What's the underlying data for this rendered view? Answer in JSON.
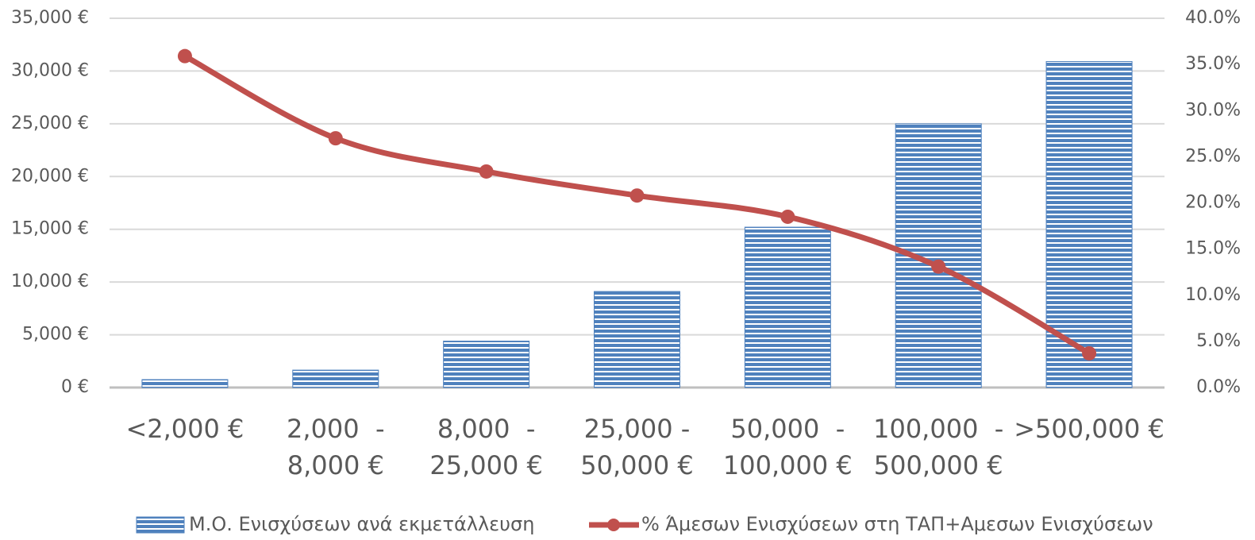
{
  "chart_data": {
    "type": "combo",
    "categories": [
      "<2,000 €",
      "2,000  -\n8,000 €",
      "8,000  -\n25,000 €",
      "25,000 -\n50,000 €",
      "50,000  -\n100,000 €",
      "100,000  -\n500,000 €",
      ">500,000 €"
    ],
    "series": [
      {
        "name": "Μ.Ο. Ενισχύσεων ανά εκμετάλλευση",
        "type": "bar",
        "color": "#4f81bd",
        "axis": "y",
        "values": [
          750,
          1650,
          4400,
          9100,
          15200,
          25000,
          30900
        ]
      },
      {
        "name": "% Άμεσων Ενισχύσεων στη ΤΑΠ+Αμεσων Ενισχύσεων",
        "type": "line",
        "color": "#c0504d",
        "axis": "y2",
        "values": [
          35.9,
          27.0,
          23.4,
          20.8,
          18.5,
          13.1,
          3.7
        ]
      }
    ],
    "ylim": [
      0,
      35000
    ],
    "yticks": [
      {
        "value": 0,
        "label": "0 €"
      },
      {
        "value": 5000,
        "label": "5,000 €"
      },
      {
        "value": 10000,
        "label": "10,000 €"
      },
      {
        "value": 15000,
        "label": "15,000 €"
      },
      {
        "value": 20000,
        "label": "20,000 €"
      },
      {
        "value": 25000,
        "label": "25,000 €"
      },
      {
        "value": 30000,
        "label": "30,000 €"
      },
      {
        "value": 35000,
        "label": "35,000 €"
      }
    ],
    "y2lim": [
      0,
      40
    ],
    "y2ticks": [
      {
        "value": 0,
        "label": "0.0%"
      },
      {
        "value": 5,
        "label": "5.0%"
      },
      {
        "value": 10,
        "label": "10.0%"
      },
      {
        "value": 15,
        "label": "15.0%"
      },
      {
        "value": 20,
        "label": "20.0%"
      },
      {
        "value": 25,
        "label": "25.0%"
      },
      {
        "value": 30,
        "label": "30.0%"
      },
      {
        "value": 35,
        "label": "35.0%"
      },
      {
        "value": 40,
        "label": "40.0%"
      }
    ],
    "grid": true
  }
}
